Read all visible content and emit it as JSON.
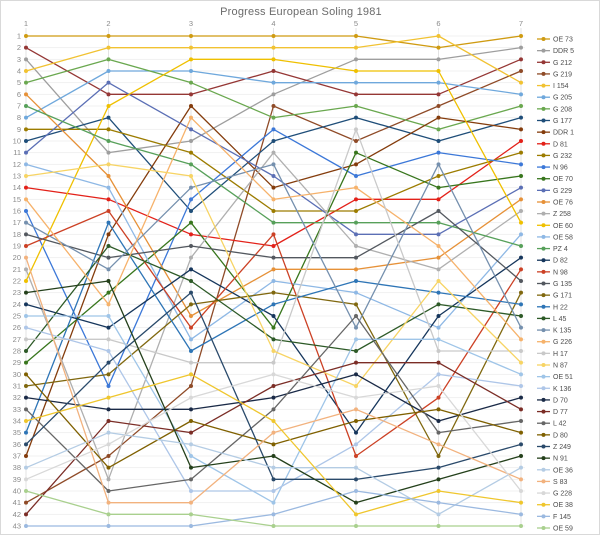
{
  "title": "Progress European Soling 1981",
  "chart_data": {
    "type": "line",
    "title": "Progress European Soling 1981",
    "xlabel": "",
    "ylabel": "",
    "x": [
      1,
      2,
      3,
      4,
      5,
      6,
      7
    ],
    "x_tick_labels": [
      "1",
      "2",
      "3",
      "4",
      "5",
      "6",
      "7"
    ],
    "y_axis": {
      "min": 1,
      "max": 43,
      "inverted": true,
      "meaning": "overall standing (1 = leader)"
    },
    "y_tick_labels": [
      "1",
      "2",
      "3",
      "4",
      "5",
      "6",
      "7",
      "8",
      "9",
      "10",
      "11",
      "12",
      "13",
      "14",
      "15",
      "16",
      "17",
      "18",
      "19",
      "20",
      "21",
      "22",
      "23",
      "24",
      "25",
      "26",
      "27",
      "28",
      "29",
      "30",
      "31",
      "32",
      "33",
      "34",
      "35",
      "36",
      "37",
      "38",
      "39",
      "40",
      "41",
      "42",
      "43"
    ],
    "grid": true,
    "legend_position": "right",
    "series": [
      {
        "name": "OE 73",
        "color": "#CF9B12",
        "values": [
          1,
          1,
          1,
          1,
          1,
          2,
          1
        ]
      },
      {
        "name": "DDR 5",
        "color": "#9E9E9E",
        "values": [
          3,
          11,
          10,
          6,
          3,
          3,
          2
        ]
      },
      {
        "name": "G 212",
        "color": "#953735",
        "values": [
          2,
          6,
          6,
          4,
          6,
          6,
          3
        ]
      },
      {
        "name": "G 219",
        "color": "#8F4B28",
        "values": [
          41,
          37,
          31,
          7,
          10,
          7,
          4
        ]
      },
      {
        "name": "I 154",
        "color": "#F1C232",
        "values": [
          4,
          2,
          2,
          2,
          2,
          1,
          5
        ]
      },
      {
        "name": "G 205",
        "color": "#6FA8DC",
        "values": [
          8,
          4,
          4,
          5,
          5,
          5,
          6
        ]
      },
      {
        "name": "G 208",
        "color": "#6AA84F",
        "values": [
          5,
          3,
          5,
          8,
          7,
          9,
          7
        ]
      },
      {
        "name": "G 177",
        "color": "#1F4E79",
        "values": [
          10,
          8,
          16,
          10,
          8,
          10,
          8
        ]
      },
      {
        "name": "DDR 1",
        "color": "#843C0C",
        "values": [
          37,
          18,
          7,
          14,
          12,
          8,
          9
        ]
      },
      {
        "name": "D 81",
        "color": "#E32119",
        "values": [
          14,
          15,
          18,
          19,
          15,
          15,
          10
        ]
      },
      {
        "name": "G 232",
        "color": "#9C7C00",
        "values": [
          9,
          9,
          11,
          16,
          16,
          13,
          11
        ]
      },
      {
        "name": "N 96",
        "color": "#3C78D8",
        "values": [
          16,
          31,
          15,
          9,
          13,
          11,
          12
        ]
      },
      {
        "name": "OE 70",
        "color": "#38761D",
        "values": [
          29,
          23,
          17,
          26,
          11,
          14,
          13
        ]
      },
      {
        "name": "G 229",
        "color": "#5B6FB5",
        "values": [
          11,
          5,
          9,
          13,
          18,
          18,
          14
        ]
      },
      {
        "name": "OE 76",
        "color": "#E69138",
        "values": [
          6,
          13,
          25,
          21,
          21,
          20,
          15
        ]
      },
      {
        "name": "Z 258",
        "color": "#AFAFAF",
        "values": [
          21,
          39,
          20,
          11,
          19,
          21,
          16
        ]
      },
      {
        "name": "OE 60",
        "color": "#EFC000",
        "values": [
          22,
          7,
          3,
          3,
          4,
          4,
          17
        ]
      },
      {
        "name": "OE 58",
        "color": "#8EB8E5",
        "values": [
          12,
          14,
          27,
          22,
          23,
          26,
          18
        ]
      },
      {
        "name": "PZ 4",
        "color": "#57A05A",
        "values": [
          7,
          10,
          12,
          17,
          17,
          17,
          19
        ]
      },
      {
        "name": "D 82",
        "color": "#16365C",
        "values": [
          24,
          26,
          21,
          25,
          35,
          25,
          20
        ]
      },
      {
        "name": "N 98",
        "color": "#CC4125",
        "values": [
          19,
          16,
          26,
          18,
          37,
          32,
          21
        ]
      },
      {
        "name": "G 135",
        "color": "#53585F",
        "values": [
          18,
          20,
          19,
          20,
          20,
          16,
          22
        ]
      },
      {
        "name": "G 171",
        "color": "#80680F",
        "values": [
          31,
          30,
          24,
          23,
          24,
          37,
          23
        ]
      },
      {
        "name": "H 22",
        "color": "#2E75B6",
        "values": [
          35,
          17,
          28,
          24,
          22,
          23,
          24
        ]
      },
      {
        "name": "L 45",
        "color": "#2D5A27",
        "values": [
          28,
          19,
          22,
          27,
          28,
          24,
          25
        ]
      },
      {
        "name": "K 135",
        "color": "#7590AE",
        "values": [
          17,
          21,
          14,
          12,
          26,
          12,
          26
        ]
      },
      {
        "name": "G 226",
        "color": "#F6B26B",
        "values": [
          15,
          24,
          8,
          15,
          14,
          19,
          27
        ]
      },
      {
        "name": "H 17",
        "color": "#C9C9C9",
        "values": [
          27,
          27,
          29,
          29,
          9,
          28,
          28
        ]
      },
      {
        "name": "N 87",
        "color": "#F7D464",
        "values": [
          13,
          12,
          13,
          28,
          31,
          22,
          29
        ]
      },
      {
        "name": "OE 51",
        "color": "#9FC5E8",
        "values": [
          25,
          25,
          37,
          41,
          27,
          27,
          30
        ]
      },
      {
        "name": "K 136",
        "color": "#AEC6E8",
        "values": [
          26,
          28,
          40,
          40,
          36,
          30,
          31
        ]
      },
      {
        "name": "D 70",
        "color": "#1A2A47",
        "values": [
          32,
          33,
          33,
          32,
          30,
          34,
          32
        ]
      },
      {
        "name": "D 77",
        "color": "#7B2D26",
        "values": [
          42,
          34,
          35,
          31,
          29,
          29,
          33
        ]
      },
      {
        "name": "L 42",
        "color": "#666666",
        "values": [
          33,
          40,
          39,
          33,
          25,
          35,
          34
        ]
      },
      {
        "name": "D 80",
        "color": "#7F6000",
        "values": [
          30,
          38,
          34,
          36,
          34,
          33,
          35
        ]
      },
      {
        "name": "Z 249",
        "color": "#2A4A6B",
        "values": [
          36,
          29,
          23,
          39,
          39,
          38,
          36
        ]
      },
      {
        "name": "N 91",
        "color": "#24401B",
        "values": [
          23,
          22,
          38,
          37,
          41,
          39,
          37
        ]
      },
      {
        "name": "OE 36",
        "color": "#B4CCE4",
        "values": [
          38,
          35,
          36,
          38,
          38,
          42,
          38
        ]
      },
      {
        "name": "S 83",
        "color": "#F2B27E",
        "values": [
          20,
          41,
          41,
          35,
          33,
          36,
          39
        ]
      },
      {
        "name": "G 228",
        "color": "#D8D8D8",
        "values": [
          39,
          36,
          32,
          30,
          32,
          31,
          40
        ]
      },
      {
        "name": "OE 38",
        "color": "#EFC62D",
        "values": [
          34,
          32,
          30,
          34,
          42,
          40,
          41
        ]
      },
      {
        "name": "F 145",
        "color": "#9BB9E0",
        "values": [
          43,
          43,
          43,
          42,
          40,
          41,
          42
        ]
      },
      {
        "name": "OE 59",
        "color": "#A9D08E",
        "values": [
          40,
          42,
          42,
          43,
          43,
          43,
          43
        ]
      }
    ]
  }
}
